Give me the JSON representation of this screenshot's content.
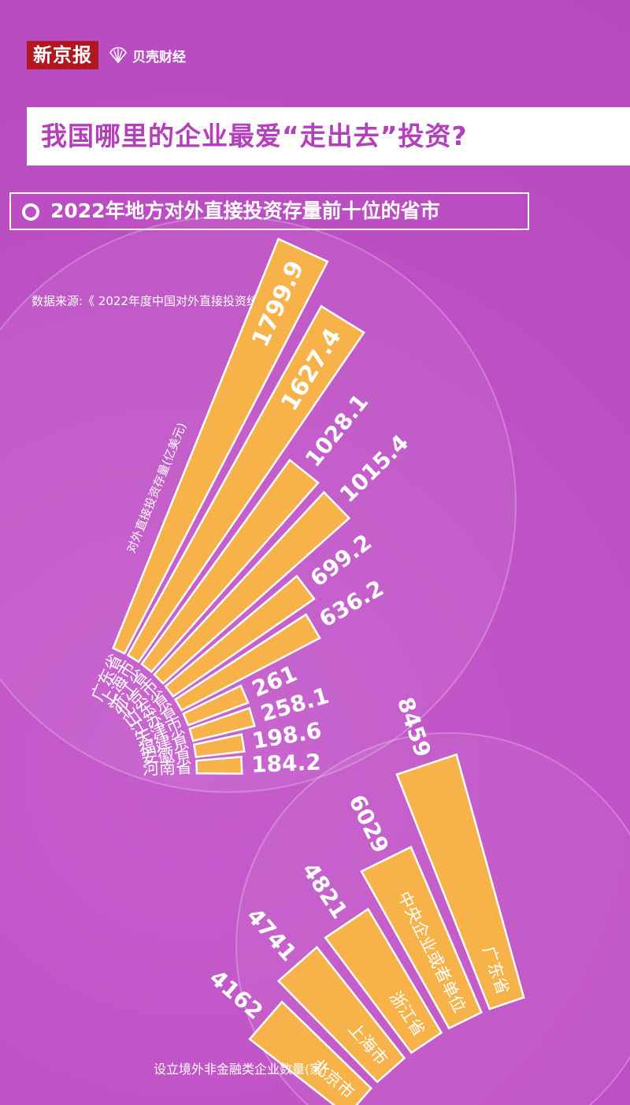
{
  "brand": {
    "newspaper": "新京报",
    "sub": "贝壳财经"
  },
  "title": "我国哪里的企业最爱“走出去”投资?",
  "subtitle": "2022年地方对外直接投资存量前十位的省市",
  "source": "数据来源:《 2022年度中国对外直接投资统计公报 》",
  "colors": {
    "background": "#c255c9",
    "bar": "#f7b24a",
    "bar_outline": "#ffffff",
    "title_text": "#b43fbb"
  },
  "icons": {
    "brand_logo": "shell-icon",
    "subtitle_marker": "ring-icon"
  },
  "chart_data": [
    {
      "type": "bar",
      "title": "2022年地方对外直接投资存量前十位的省市",
      "ylabel": "对外直接投资存量(亿美元)",
      "categories": [
        "广东省",
        "上海市",
        "浙江省",
        "北京市",
        "山东省",
        "江苏省",
        "天津市",
        "福建省",
        "安徽省",
        "河南省"
      ],
      "values": [
        1799.9,
        1627.4,
        1028.1,
        1015.4,
        699.2,
        636.2,
        261,
        258.1,
        198.6,
        184.2
      ],
      "value_labels": [
        "1799.9",
        "1627.4",
        "1028.1",
        "1015.4",
        "699.2",
        "636.2",
        "261",
        "258.1",
        "198.6",
        "184.2"
      ]
    },
    {
      "type": "bar",
      "title": "",
      "ylabel": "设立境外非金融类企业数量(家)",
      "categories": [
        "北京市",
        "上海市",
        "浙江省",
        "中央企业或者单位",
        "广东省"
      ],
      "values": [
        4162,
        4741,
        4821,
        6029,
        8459
      ],
      "value_labels": [
        "4162",
        "4741",
        "4821",
        "6029",
        "8459"
      ]
    }
  ]
}
